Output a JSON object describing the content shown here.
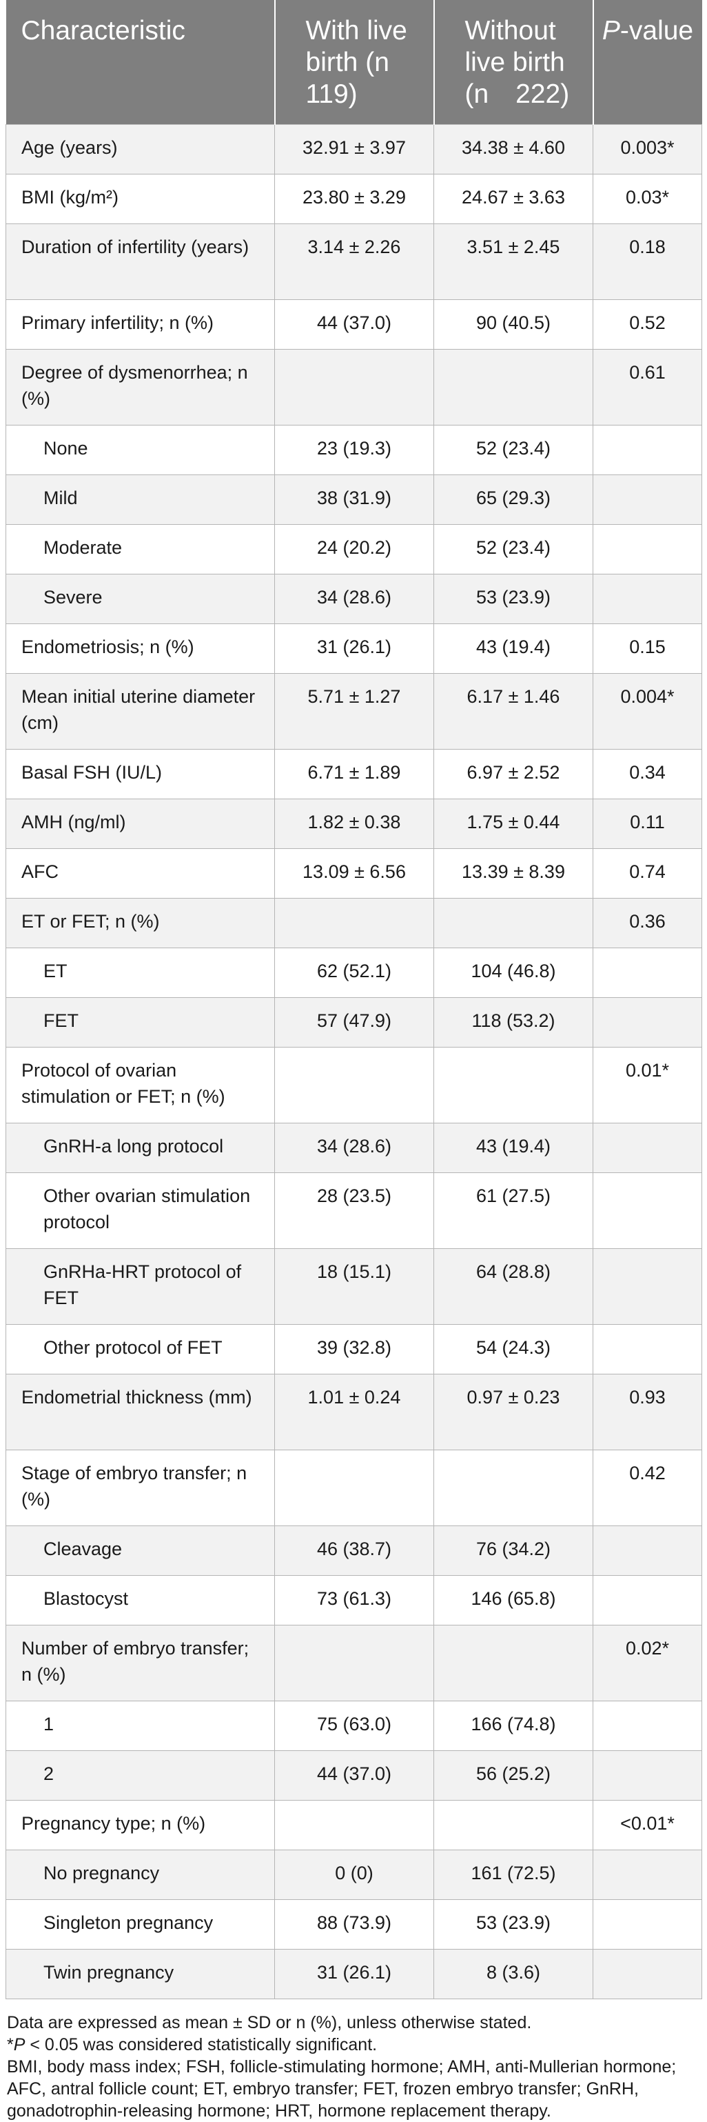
{
  "table": {
    "headers": [
      "Characteristic",
      "With live birth (n 119)",
      "Without live birth (n 222)",
      "P-value"
    ],
    "rows": [
      {
        "label": "Age (years)",
        "with": "32.91 ± 3.97",
        "without": "34.38 ± 4.60",
        "p": "0.003*",
        "indent": false,
        "two": false
      },
      {
        "label": "BMI (kg/m²)",
        "with": "23.80 ± 3.29",
        "without": "24.67 ± 3.63",
        "p": "0.03*",
        "indent": false,
        "two": false
      },
      {
        "label": "Duration of infertility (years)",
        "with": "3.14 ± 2.26",
        "without": "3.51 ± 2.45",
        "p": "0.18",
        "indent": false,
        "two": true
      },
      {
        "label": "Primary infertility; n (%)",
        "with": "44 (37.0)",
        "without": "90 (40.5)",
        "p": "0.52",
        "indent": false,
        "two": false
      },
      {
        "label": "Degree of dysmenorrhea; n (%)",
        "with": "",
        "without": "",
        "p": "0.61",
        "indent": false,
        "two": true
      },
      {
        "label": "None",
        "with": "23 (19.3)",
        "without": "52 (23.4)",
        "p": "",
        "indent": true,
        "two": false
      },
      {
        "label": "Mild",
        "with": "38 (31.9)",
        "without": "65 (29.3)",
        "p": "",
        "indent": true,
        "two": false
      },
      {
        "label": "Moderate",
        "with": "24 (20.2)",
        "without": "52 (23.4)",
        "p": "",
        "indent": true,
        "two": false
      },
      {
        "label": "Severe",
        "with": "34 (28.6)",
        "without": "53 (23.9)",
        "p": "",
        "indent": true,
        "two": false
      },
      {
        "label": "Endometriosis; n (%)",
        "with": "31 (26.1)",
        "without": "43 (19.4)",
        "p": "0.15",
        "indent": false,
        "two": false
      },
      {
        "label": "Mean initial uterine diameter (cm)",
        "with": "5.71 ± 1.27",
        "without": "6.17 ± 1.46",
        "p": "0.004*",
        "indent": false,
        "two": true
      },
      {
        "label": "Basal FSH (IU/L)",
        "with": "6.71 ± 1.89",
        "without": "6.97 ± 2.52",
        "p": "0.34",
        "indent": false,
        "two": false
      },
      {
        "label": "AMH (ng/ml)",
        "with": "1.82 ± 0.38",
        "without": "1.75 ± 0.44",
        "p": "0.11",
        "indent": false,
        "two": false
      },
      {
        "label": "AFC",
        "with": "13.09 ± 6.56",
        "without": "13.39 ± 8.39",
        "p": "0.74",
        "indent": false,
        "two": false
      },
      {
        "label": "ET or FET; n (%)",
        "with": "",
        "without": "",
        "p": "0.36",
        "indent": false,
        "two": false
      },
      {
        "label": "ET",
        "with": "62 (52.1)",
        "without": "104 (46.8)",
        "p": "",
        "indent": true,
        "two": false
      },
      {
        "label": "FET",
        "with": "57 (47.9)",
        "without": "118 (53.2)",
        "p": "",
        "indent": true,
        "two": false
      },
      {
        "label": "Protocol of ovarian stimulation or FET; n (%)",
        "with": "",
        "without": "",
        "p": "0.01*",
        "indent": false,
        "two": true
      },
      {
        "label": "GnRH-a long protocol",
        "with": "34 (28.6)",
        "without": "43 (19.4)",
        "p": "",
        "indent": true,
        "two": false
      },
      {
        "label": "Other ovarian stimulation protocol",
        "with": "28 (23.5)",
        "without": "61 (27.5)",
        "p": "",
        "indent": true,
        "two": true
      },
      {
        "label": "GnRHa-HRT protocol of FET",
        "with": "18 (15.1)",
        "without": "64 (28.8)",
        "p": "",
        "indent": true,
        "two": true
      },
      {
        "label": "Other protocol of FET",
        "with": "39 (32.8)",
        "without": "54 (24.3)",
        "p": "",
        "indent": true,
        "two": false
      },
      {
        "label": "Endometrial thickness (mm)",
        "with": "1.01 ± 0.24",
        "without": "0.97 ± 0.23",
        "p": "0.93",
        "indent": false,
        "two": true
      },
      {
        "label": "Stage of embryo transfer; n (%)",
        "with": "",
        "without": "",
        "p": "0.42",
        "indent": false,
        "two": true
      },
      {
        "label": "Cleavage",
        "with": "46 (38.7)",
        "without": "76 (34.2)",
        "p": "",
        "indent": true,
        "two": false
      },
      {
        "label": "Blastocyst",
        "with": "73 (61.3)",
        "without": "146 (65.8)",
        "p": "",
        "indent": true,
        "two": false
      },
      {
        "label": "Number of embryo transfer; n (%)",
        "with": "",
        "without": "",
        "p": "0.02*",
        "indent": false,
        "two": true
      },
      {
        "label": "1",
        "with": "75 (63.0)",
        "without": "166 (74.8)",
        "p": "",
        "indent": true,
        "two": false
      },
      {
        "label": "2",
        "with": "44 (37.0)",
        "without": "56 (25.2)",
        "p": "",
        "indent": true,
        "two": false
      },
      {
        "label": "Pregnancy type; n (%)",
        "with": "",
        "without": "",
        "p": "<0.01*",
        "indent": false,
        "two": false
      },
      {
        "label": "No pregnancy",
        "with": "0 (0)",
        "without": "161 (72.5)",
        "p": "",
        "indent": true,
        "two": false
      },
      {
        "label": "Singleton pregnancy",
        "with": "88 (73.9)",
        "without": "53 (23.9)",
        "p": "",
        "indent": true,
        "two": false
      },
      {
        "label": "Twin pregnancy",
        "with": "31 (26.1)",
        "without": "8 (3.6)",
        "p": "",
        "indent": true,
        "two": false
      }
    ]
  },
  "notes": {
    "line1": "Data are expressed as mean ± SD or n (%), unless otherwise stated.",
    "line2_star": "*",
    "line2_p": "P",
    "line2_rest": " < 0.05 was considered statistically significant.",
    "abbreviations": "BMI, body mass index; FSH, follicle-stimulating hormone; AMH, anti-Mullerian hormone; AFC, antral follicle count; ET, embryo transfer; FET, frozen embryo transfer; GnRH, gonadotrophin-releasing hormone; HRT, hormone replacement therapy."
  }
}
